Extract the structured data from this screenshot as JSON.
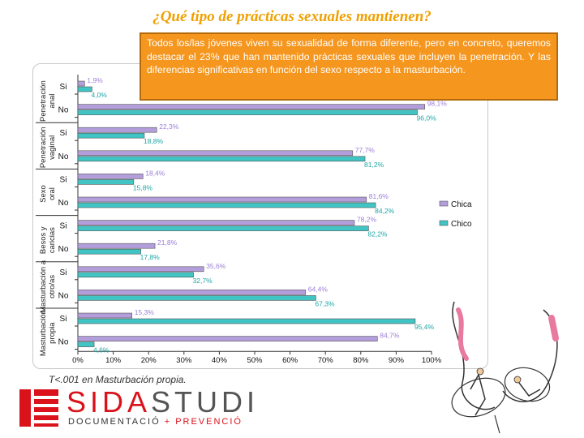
{
  "title": "¿Qué tipo de prácticas sexuales mantienen?",
  "callout": "Todos los/las jóvenes viven su sexualidad de forma diferente, pero en concreto, queremos destacar el 23% que han mantenido prácticas sexuales que incluyen la penetración. Y las diferencias significativas en función del sexo respecto a la masturbación.",
  "footnote": "T<.001 en Masturbación propia.",
  "logo": {
    "name_red": "SIDA",
    "name_grey": "STUDI",
    "tag_a": "DOCUMENTACIÓ",
    "tag_plus": " + ",
    "tag_b": "PREVENCIÓ"
  },
  "colors": {
    "chica": "#b39ddb",
    "chico": "#40c4c4",
    "label_chica": "#9c7fd6",
    "label_chico": "#1fa6a6",
    "title": "#f0a000",
    "callout_bg": "#f5961e",
    "brand": "#d9121b"
  },
  "chart_data": {
    "type": "bar",
    "orientation": "horizontal",
    "xlim": [
      0,
      100
    ],
    "x_ticks": [
      "0%",
      "10%",
      "20%",
      "30%",
      "40%",
      "50%",
      "60%",
      "70%",
      "80%",
      "90%",
      "100%"
    ],
    "groups": [
      "Penetración anal",
      "Penetración vaginal",
      "Sexo oral",
      "Besos y caricias",
      "Masturbación a otro/as",
      "Masturbación propia"
    ],
    "categories": [
      "Si",
      "No",
      "Si",
      "No",
      "Si",
      "No",
      "Si",
      "No",
      "Si",
      "No",
      "Si",
      "No"
    ],
    "series": [
      {
        "name": "Chica",
        "values": [
          1.9,
          98.1,
          22.3,
          77.7,
          18.4,
          81.6,
          78.2,
          21.8,
          35.6,
          64.4,
          15.3,
          84.7
        ]
      },
      {
        "name": "Chico",
        "values": [
          4.0,
          96.0,
          18.8,
          81.2,
          15.8,
          84.2,
          82.2,
          17.8,
          32.7,
          67.3,
          95.4,
          4.6
        ]
      }
    ],
    "data_labels": {
      "Chica": [
        "1,9%",
        "98,1%",
        "22,3%",
        "77,7%",
        "18,4%",
        "81,6%",
        "78,2%",
        "21,8%",
        "35,6%",
        "64,4%",
        "15,3%",
        "84,7%"
      ],
      "Chico": [
        "4,0%",
        "96,0%",
        "18,8%",
        "81,2%",
        "15,8%",
        "84,2%",
        "82,2%",
        "17,8%",
        "32,7%",
        "67,3%",
        "95,4%",
        "4,6%"
      ]
    },
    "legend": [
      "Chica",
      "Chico"
    ],
    "legend_position": "right",
    "grid": false
  }
}
